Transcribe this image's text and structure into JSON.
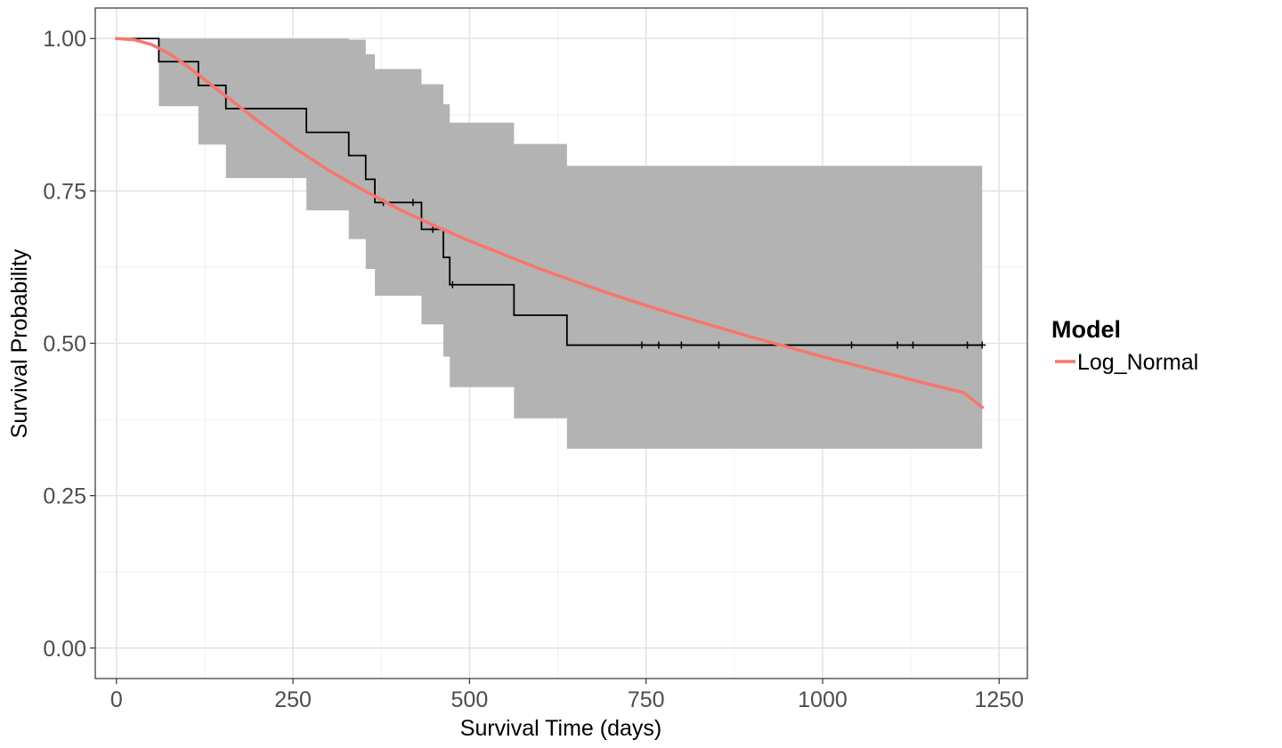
{
  "chart_data": {
    "type": "line",
    "title": "",
    "xlabel": "Survival Time (days)",
    "ylabel": "Survival Probability",
    "xlim": [
      -30,
      1290
    ],
    "ylim": [
      -0.05,
      1.05
    ],
    "x_ticks": [
      0,
      250,
      500,
      750,
      1000,
      1250
    ],
    "x_tick_labels": [
      "0",
      "250",
      "500",
      "750",
      "1000",
      "1250"
    ],
    "y_ticks": [
      0,
      0.25,
      0.5,
      0.75,
      1.0
    ],
    "y_tick_labels": [
      "0.00",
      "0.25",
      "0.50",
      "0.75",
      "1.00"
    ],
    "grid": true,
    "legend": {
      "title": "Model",
      "placement": "right",
      "entries": [
        {
          "label": "Log_Normal",
          "color": "#F8766D"
        }
      ]
    },
    "series": [
      {
        "name": "Log_Normal",
        "kind": "fitted_curve",
        "color": "#F8766D",
        "x": [
          0,
          25,
          50,
          75,
          100,
          150,
          200,
          250,
          300,
          350,
          400,
          450,
          500,
          550,
          600,
          650,
          700,
          750,
          800,
          850,
          900,
          950,
          1000,
          1050,
          1100,
          1150,
          1200,
          1226
        ],
        "y": [
          1.0,
          0.998,
          0.99,
          0.975,
          0.955,
          0.91,
          0.865,
          0.822,
          0.784,
          0.751,
          0.72,
          0.693,
          0.668,
          0.645,
          0.622,
          0.601,
          0.581,
          0.562,
          0.544,
          0.527,
          0.51,
          0.494,
          0.478,
          0.463,
          0.448,
          0.433,
          0.419,
          0.395
        ]
      },
      {
        "kind": "kaplan_meier_step",
        "color": "#000000",
        "x": [
          0,
          60,
          116,
          155,
          269,
          329,
          353,
          366,
          420,
          432,
          463,
          472,
          563,
          638,
          1226
        ],
        "y": [
          1.0,
          0.962,
          0.923,
          0.885,
          0.846,
          0.808,
          0.769,
          0.731,
          0.731,
          0.687,
          0.641,
          0.596,
          0.546,
          0.497,
          0.497
        ]
      },
      {
        "kind": "confidence_band",
        "color": "#b3b3b3",
        "x": [
          0,
          60,
          116,
          155,
          269,
          329,
          353,
          366,
          432,
          463,
          472,
          563,
          638,
          1226
        ],
        "lower": [
          1.0,
          0.889,
          0.826,
          0.771,
          0.718,
          0.671,
          0.622,
          0.578,
          0.531,
          0.478,
          0.428,
          0.377,
          0.327,
          0.327
        ],
        "upper": [
          1.0,
          1.0,
          1.0,
          1.0,
          1.0,
          0.998,
          0.974,
          0.95,
          0.925,
          0.892,
          0.862,
          0.827,
          0.791,
          0.751
        ]
      },
      {
        "kind": "censor_marks",
        "color": "#000000",
        "x": [
          378,
          420,
          448,
          476,
          744,
          768,
          800,
          853,
          1041,
          1106,
          1128,
          1205,
          1226
        ],
        "y": [
          0.731,
          0.731,
          0.687,
          0.596,
          0.497,
          0.497,
          0.497,
          0.497,
          0.497,
          0.497,
          0.497,
          0.497,
          0.497
        ]
      }
    ]
  }
}
